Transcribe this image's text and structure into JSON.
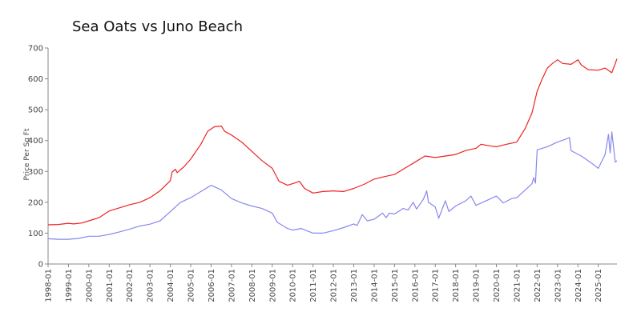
{
  "chart_data": {
    "type": "line",
    "title": "Sea Oats vs  Juno Beach",
    "xlabel": "",
    "ylabel": "Price Per Sq Ft",
    "ylim": [
      0,
      700
    ],
    "yticks": [
      "0",
      "100",
      "200",
      "300",
      "400",
      "500",
      "600",
      "700"
    ],
    "xlim": [
      "1998-01",
      "2025-12"
    ],
    "xticks": [
      "1998-01",
      "1999-01",
      "2000-01",
      "2001-01",
      "2002-01",
      "2003-01",
      "2004-01",
      "2005-01",
      "2006-01",
      "2007-01",
      "2008-01",
      "2009-01",
      "2010-01",
      "2011-01",
      "2012-01",
      "2013-01",
      "2014-01",
      "2015-01",
      "2016-01",
      "2017-01",
      "2018-01",
      "2019-01",
      "2020-01",
      "2021-01",
      "2022-01",
      "2023-01",
      "2024-01",
      "2025-01"
    ],
    "grid": false,
    "legend": "none",
    "series": [
      {
        "color": "#ee2222",
        "points": [
          [
            "1998-01",
            127
          ],
          [
            "1998-07",
            128
          ],
          [
            "1999-01",
            132
          ],
          [
            "1999-04",
            130
          ],
          [
            "1999-09",
            133
          ],
          [
            "2000-01",
            140
          ],
          [
            "2000-07",
            150
          ],
          [
            "2001-01",
            172
          ],
          [
            "2001-07",
            182
          ],
          [
            "2002-01",
            192
          ],
          [
            "2002-07",
            200
          ],
          [
            "2003-01",
            215
          ],
          [
            "2003-07",
            238
          ],
          [
            "2004-01",
            270
          ],
          [
            "2004-02",
            298
          ],
          [
            "2004-04",
            307
          ],
          [
            "2004-05",
            296
          ],
          [
            "2004-09",
            315
          ],
          [
            "2005-01",
            340
          ],
          [
            "2005-07",
            388
          ],
          [
            "2005-11",
            430
          ],
          [
            "2006-03",
            445
          ],
          [
            "2006-07",
            447
          ],
          [
            "2006-09",
            430
          ],
          [
            "2007-01",
            418
          ],
          [
            "2007-07",
            395
          ],
          [
            "2008-01",
            365
          ],
          [
            "2008-07",
            335
          ],
          [
            "2009-01",
            310
          ],
          [
            "2009-05",
            268
          ],
          [
            "2009-10",
            255
          ],
          [
            "2010-02",
            262
          ],
          [
            "2010-05",
            268
          ],
          [
            "2010-08",
            245
          ],
          [
            "2011-01",
            230
          ],
          [
            "2011-07",
            235
          ],
          [
            "2012-01",
            237
          ],
          [
            "2012-07",
            235
          ],
          [
            "2013-01",
            245
          ],
          [
            "2013-07",
            258
          ],
          [
            "2014-01",
            275
          ],
          [
            "2014-07",
            283
          ],
          [
            "2015-01",
            290
          ],
          [
            "2015-07",
            310
          ],
          [
            "2016-01",
            330
          ],
          [
            "2016-07",
            350
          ],
          [
            "2017-01",
            345
          ],
          [
            "2017-07",
            350
          ],
          [
            "2018-01",
            355
          ],
          [
            "2018-07",
            368
          ],
          [
            "2019-01",
            375
          ],
          [
            "2019-04",
            388
          ],
          [
            "2019-10",
            382
          ],
          [
            "2020-01",
            380
          ],
          [
            "2020-07",
            388
          ],
          [
            "2021-01",
            395
          ],
          [
            "2021-06",
            440
          ],
          [
            "2021-10",
            490
          ],
          [
            "2022-01",
            560
          ],
          [
            "2022-04",
            600
          ],
          [
            "2022-07",
            635
          ],
          [
            "2022-10",
            650
          ],
          [
            "2023-01",
            662
          ],
          [
            "2023-04",
            650
          ],
          [
            "2023-09",
            647
          ],
          [
            "2024-01",
            662
          ],
          [
            "2024-03",
            645
          ],
          [
            "2024-07",
            630
          ],
          [
            "2025-01",
            628
          ],
          [
            "2025-05",
            635
          ],
          [
            "2025-09",
            620
          ],
          [
            "2025-12",
            665
          ]
        ]
      },
      {
        "color": "#8888ee",
        "points": [
          [
            "1998-01",
            82
          ],
          [
            "1998-07",
            80
          ],
          [
            "1999-01",
            80
          ],
          [
            "1999-07",
            83
          ],
          [
            "2000-01",
            90
          ],
          [
            "2000-07",
            90
          ],
          [
            "2001-01",
            96
          ],
          [
            "2001-07",
            104
          ],
          [
            "2002-01",
            113
          ],
          [
            "2002-07",
            123
          ],
          [
            "2003-01",
            129
          ],
          [
            "2003-07",
            140
          ],
          [
            "2004-01",
            170
          ],
          [
            "2004-07",
            200
          ],
          [
            "2005-01",
            215
          ],
          [
            "2005-07",
            235
          ],
          [
            "2006-01",
            255
          ],
          [
            "2006-07",
            240
          ],
          [
            "2007-01",
            212
          ],
          [
            "2007-07",
            198
          ],
          [
            "2008-01",
            188
          ],
          [
            "2008-07",
            180
          ],
          [
            "2009-01",
            165
          ],
          [
            "2009-04",
            135
          ],
          [
            "2009-10",
            115
          ],
          [
            "2010-01",
            110
          ],
          [
            "2010-06",
            115
          ],
          [
            "2011-01",
            100
          ],
          [
            "2011-07",
            100
          ],
          [
            "2012-01",
            108
          ],
          [
            "2012-07",
            118
          ],
          [
            "2013-01",
            130
          ],
          [
            "2013-03",
            125
          ],
          [
            "2013-06",
            160
          ],
          [
            "2013-09",
            140
          ],
          [
            "2014-01",
            145
          ],
          [
            "2014-06",
            165
          ],
          [
            "2014-08",
            150
          ],
          [
            "2014-10",
            165
          ],
          [
            "2015-01",
            162
          ],
          [
            "2015-06",
            180
          ],
          [
            "2015-09",
            175
          ],
          [
            "2015-12",
            200
          ],
          [
            "2016-02",
            178
          ],
          [
            "2016-06",
            210
          ],
          [
            "2016-08",
            237
          ],
          [
            "2016-09",
            200
          ],
          [
            "2017-01",
            185
          ],
          [
            "2017-03",
            148
          ],
          [
            "2017-07",
            205
          ],
          [
            "2017-09",
            170
          ],
          [
            "2018-01",
            188
          ],
          [
            "2018-07",
            205
          ],
          [
            "2018-10",
            220
          ],
          [
            "2019-01",
            190
          ],
          [
            "2019-07",
            205
          ],
          [
            "2020-01",
            220
          ],
          [
            "2020-05",
            198
          ],
          [
            "2020-10",
            212
          ],
          [
            "2021-01",
            215
          ],
          [
            "2021-06",
            240
          ],
          [
            "2021-10",
            260
          ],
          [
            "2021-11",
            280
          ],
          [
            "2021-12",
            262
          ],
          [
            "2022-01",
            370
          ],
          [
            "2022-07",
            380
          ],
          [
            "2023-01",
            395
          ],
          [
            "2023-06",
            405
          ],
          [
            "2023-08",
            410
          ],
          [
            "2023-09",
            367
          ],
          [
            "2024-03",
            350
          ],
          [
            "2024-10",
            323
          ],
          [
            "2025-01",
            310
          ],
          [
            "2025-05",
            355
          ],
          [
            "2025-07",
            420
          ],
          [
            "2025-08",
            360
          ],
          [
            "2025-09",
            428
          ],
          [
            "2025-11",
            330
          ],
          [
            "2025-12",
            335
          ]
        ]
      }
    ]
  }
}
